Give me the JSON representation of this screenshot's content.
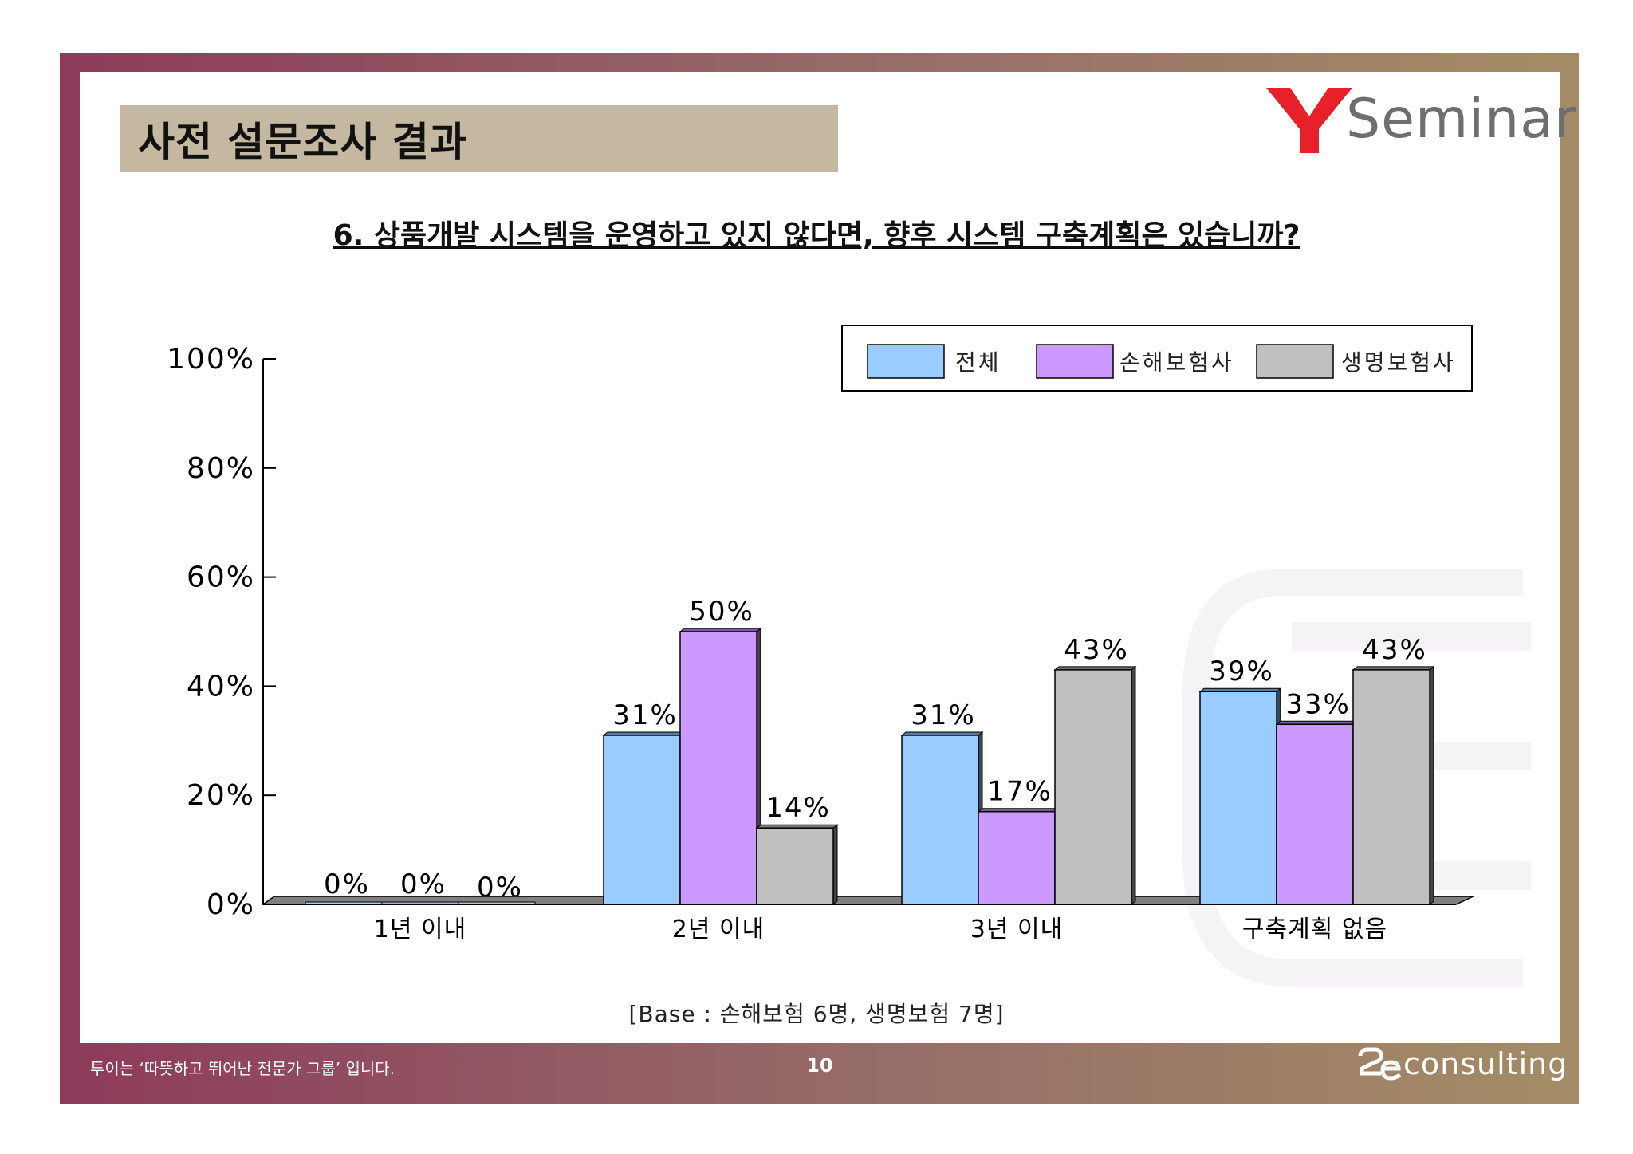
{
  "header": {
    "title": "사전 설문조사 결과",
    "logo_text": "Seminar",
    "logo_mark": "Y"
  },
  "question": "6. 상품개발 시스템을 운영하고 있지 않다면, 향후 시스템 구축계획은 있습니까?",
  "chart_data": {
    "type": "bar",
    "title": "6. 상품개발 시스템을 운영하고 있지 않다면, 향후 시스템 구축계획은 있습니까?",
    "categories": [
      "1년 이내",
      "2년 이내",
      "3년 이내",
      "구축계획 없음"
    ],
    "series": [
      {
        "name": "전체",
        "color": "#99ccff",
        "values": [
          0,
          31,
          31,
          39
        ]
      },
      {
        "name": "손해보험사",
        "color": "#cc99ff",
        "values": [
          0,
          50,
          17,
          33
        ]
      },
      {
        "name": "생명보험사",
        "color": "#c0c0c0",
        "values": [
          0,
          14,
          43,
          43
        ]
      }
    ],
    "value_labels": [
      [
        "0%",
        "31%",
        "31%",
        "39%"
      ],
      [
        "0%",
        "50%",
        "17%",
        "33%"
      ],
      [
        "0%",
        "14%",
        "43%",
        "43%"
      ]
    ],
    "y_ticks": [
      "0%",
      "20%",
      "40%",
      "60%",
      "80%",
      "100%"
    ],
    "ylim": [
      0,
      100
    ],
    "legend_position": "top-right",
    "xlabel": "",
    "ylabel": ""
  },
  "base_note": "[Base :  손해보험 6명, 생명보험  7명]",
  "footer": {
    "tagline": "투이는 ‘따뜻하고 뛰어난 전문가 그룹’ 입니다.",
    "page_number": "10",
    "logo_text": "consulting"
  },
  "colors": {
    "frame_start": "#8e3a5a",
    "frame_end": "#a48d66",
    "title_bar": "#c4b8a0",
    "logo_red": "#e8202a"
  }
}
